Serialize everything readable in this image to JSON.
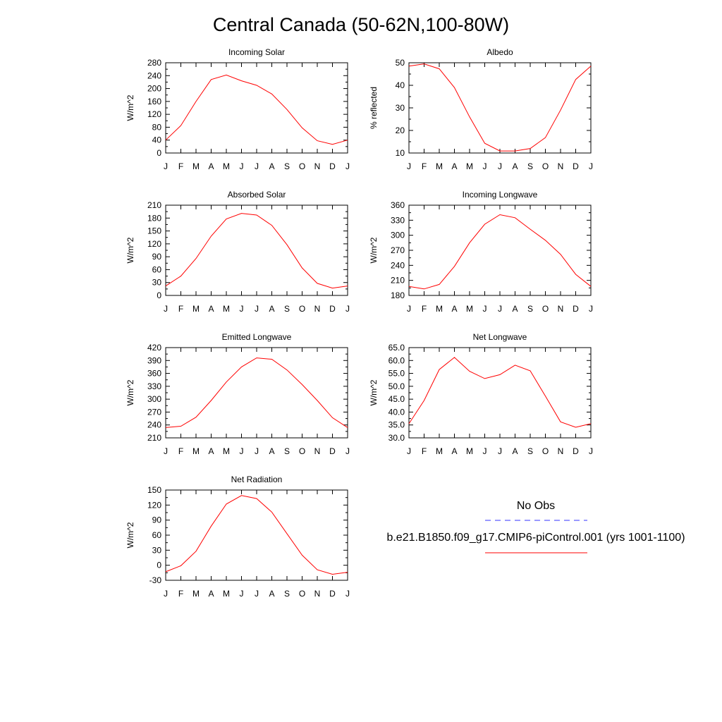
{
  "page": {
    "title": "Central Canada (50-62N,100-80W)"
  },
  "months": [
    "J",
    "F",
    "M",
    "A",
    "M",
    "J",
    "J",
    "A",
    "S",
    "O",
    "N",
    "D",
    "J"
  ],
  "colors": {
    "model": "#ff0000",
    "obs": "#3333ff",
    "axis": "#000000"
  },
  "legend": {
    "obs_label": "No Obs",
    "model_label": "b.e21.B1850.f09_g17.CMIP6-piControl.001 (yrs 1001-1100)"
  },
  "chart_data": [
    {
      "type": "line",
      "title": "Incoming Solar",
      "ylabel": "W/m^2",
      "ylim": [
        0,
        280
      ],
      "yticks": [
        "0",
        "40",
        "80",
        "120",
        "160",
        "200",
        "240",
        "280"
      ],
      "series": [
        {
          "values": [
            40,
            85,
            160,
            228,
            242,
            224,
            210,
            183,
            135,
            78,
            38,
            27,
            40
          ]
        }
      ]
    },
    {
      "type": "line",
      "title": "Albedo",
      "ylabel": "% reflected",
      "ylim": [
        10,
        50
      ],
      "yticks": [
        "10",
        "20",
        "30",
        "40",
        "50"
      ],
      "series": [
        {
          "values": [
            48.5,
            49.5,
            47.3,
            39,
            26,
            14.3,
            10.9,
            10.9,
            12,
            16.8,
            29,
            42.6,
            48.5
          ]
        }
      ]
    },
    {
      "type": "line",
      "title": "Absorbed Solar",
      "ylabel": "W/m^2",
      "ylim": [
        0,
        210
      ],
      "yticks": [
        "0",
        "30",
        "60",
        "90",
        "120",
        "150",
        "180",
        "210"
      ],
      "series": [
        {
          "values": [
            22,
            45,
            86,
            138,
            178,
            191,
            187,
            163,
            118,
            64,
            28,
            17,
            22
          ]
        }
      ]
    },
    {
      "type": "line",
      "title": "Incoming Longwave",
      "ylabel": "W/m^2",
      "ylim": [
        180,
        360
      ],
      "yticks": [
        "180",
        "210",
        "240",
        "270",
        "300",
        "330",
        "360"
      ],
      "series": [
        {
          "values": [
            198,
            193,
            202,
            238,
            285,
            322,
            341,
            335,
            312,
            290,
            262,
            222,
            198
          ]
        }
      ]
    },
    {
      "type": "line",
      "title": "Emitted Longwave",
      "ylabel": "W/m^2",
      "ylim": [
        210,
        420
      ],
      "yticks": [
        "210",
        "240",
        "270",
        "300",
        "330",
        "360",
        "390",
        "420"
      ],
      "series": [
        {
          "values": [
            234,
            237,
            258,
            297,
            340,
            375,
            396,
            393,
            368,
            334,
            297,
            257,
            234
          ]
        }
      ]
    },
    {
      "type": "line",
      "title": "Net Longwave",
      "ylabel": "W/m^2",
      "ylim": [
        30,
        65
      ],
      "yticks": [
        "30.0",
        "35.0",
        "40.0",
        "45.0",
        "50.0",
        "55.0",
        "60.0",
        "65.0"
      ],
      "series": [
        {
          "values": [
            35.5,
            44.5,
            56.5,
            61.2,
            55.8,
            53,
            54.5,
            58.2,
            56,
            46.2,
            36.2,
            34.1,
            35.5
          ]
        }
      ]
    },
    {
      "type": "line",
      "title": "Net Radiation",
      "ylabel": "W/m^2",
      "ylim": [
        -30,
        150
      ],
      "yticks": [
        "-30",
        "0",
        "30",
        "60",
        "90",
        "120",
        "150"
      ],
      "series": [
        {
          "values": [
            -13,
            -1,
            28,
            78,
            122,
            139,
            133,
            106,
            63,
            20,
            -9,
            -18,
            -14
          ]
        }
      ]
    }
  ]
}
